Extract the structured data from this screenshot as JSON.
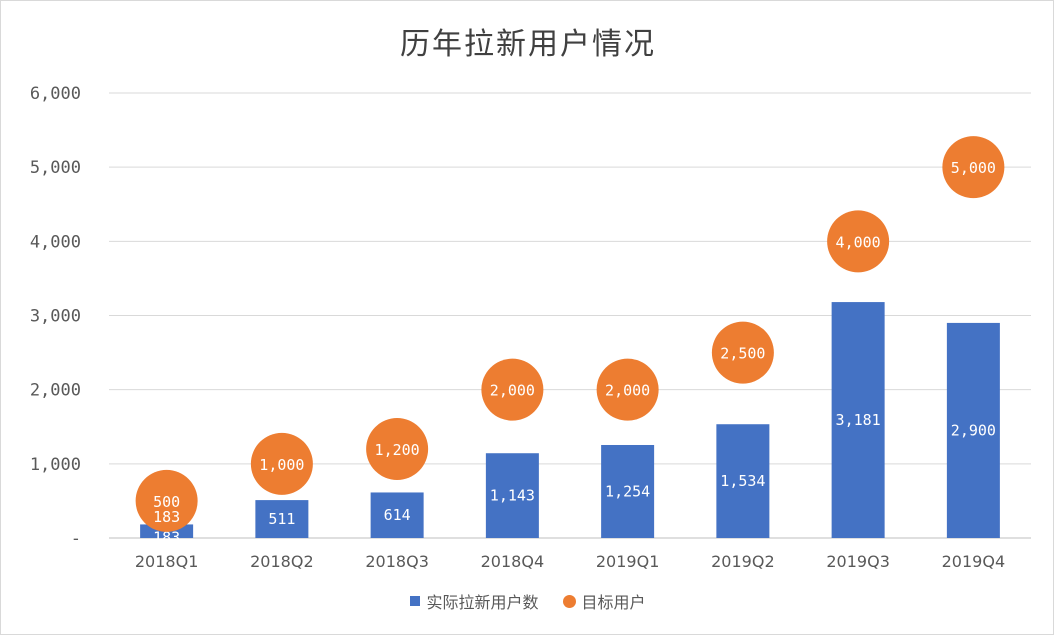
{
  "chart_data": {
    "type": "bar",
    "title": "历年拉新用户情况",
    "categories": [
      "2018Q1",
      "2018Q2",
      "2018Q3",
      "2018Q4",
      "2019Q1",
      "2019Q2",
      "2019Q3",
      "2019Q4"
    ],
    "series": [
      {
        "name": "实际拉新用户数",
        "kind": "bar",
        "color": "#4472C4",
        "values": [
          183,
          511,
          614,
          1143,
          1254,
          1534,
          3181,
          2900
        ],
        "labels": [
          "183",
          "511",
          "614",
          "1,143",
          "1,254",
          "1,534",
          "3,181",
          "2,900"
        ]
      },
      {
        "name": "目标用户",
        "kind": "scatter",
        "color": "#ED7D31",
        "values": [
          500,
          1000,
          1200,
          2000,
          2000,
          2500,
          4000,
          5000
        ],
        "labels": [
          "500",
          "1,000",
          "1,200",
          "2,000",
          "2,000",
          "2,500",
          "4,000",
          "5,000"
        ]
      }
    ],
    "ylim": [
      0,
      6000
    ],
    "yticks": [
      0,
      1000,
      2000,
      3000,
      4000,
      5000,
      6000
    ],
    "ytick_labels": [
      "-",
      "1,000",
      "2,000",
      "3,000",
      "4,000",
      "5,000",
      "6,000"
    ],
    "grid": true,
    "legend": "bottom"
  }
}
